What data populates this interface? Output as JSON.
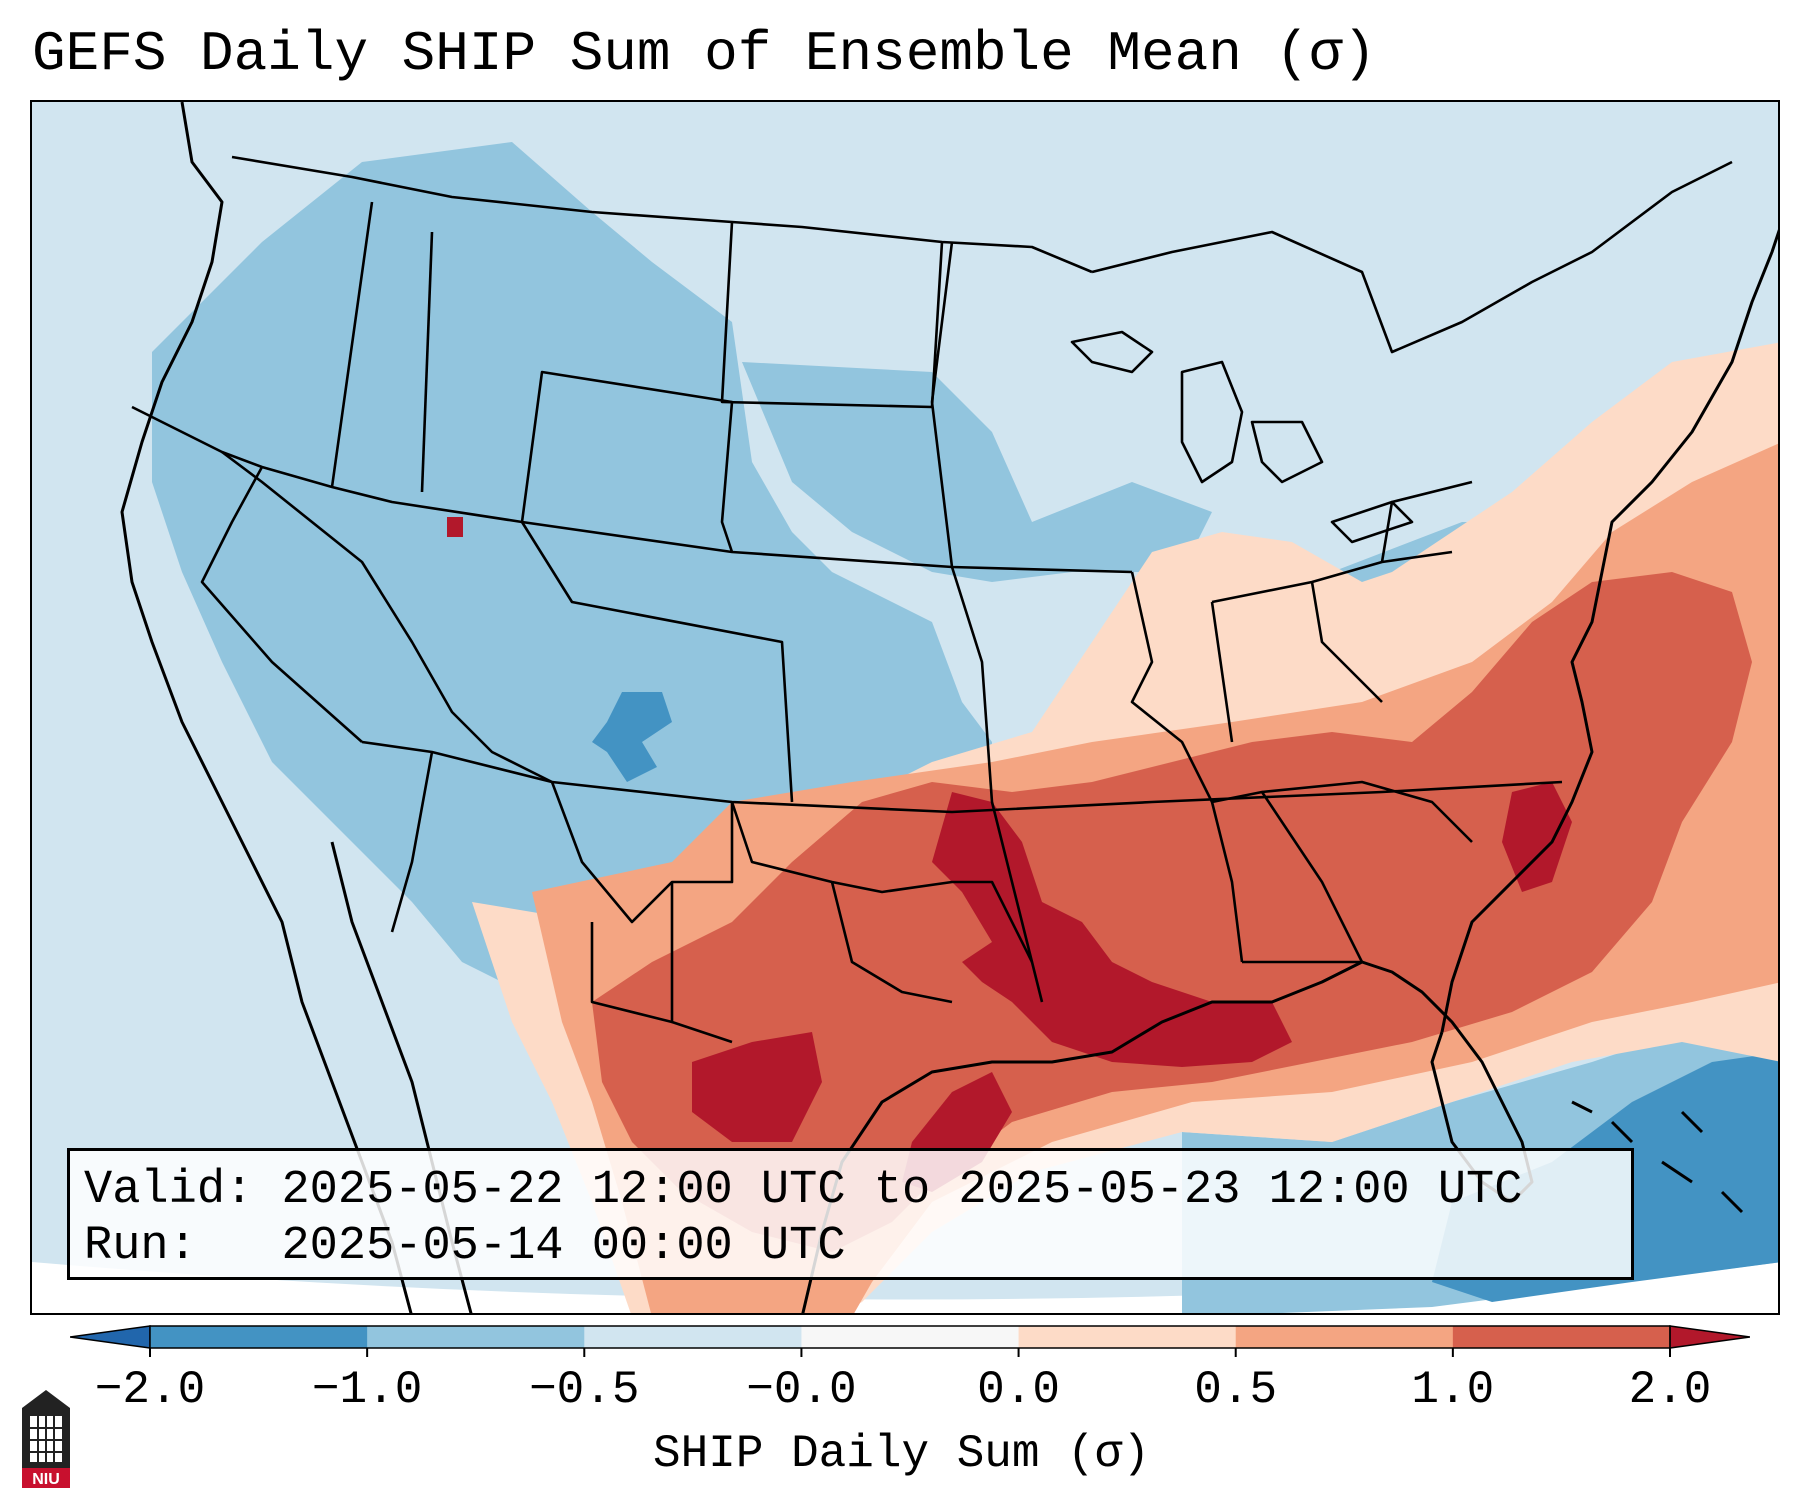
{
  "title": "GEFS Daily SHIP Sum of Ensemble Mean (σ)",
  "info": {
    "valid_label": "Valid:",
    "valid_value": "2025-05-22 12:00 UTC to 2025-05-23 12:00 UTC",
    "run_label": "Run:",
    "run_value": "2025-05-14 00:00 UTC"
  },
  "colorbar": {
    "label": "SHIP Daily Sum (σ)",
    "ticks": [
      "−2.0",
      "−1.0",
      "−0.5",
      "−0.0",
      "0.0",
      "0.5",
      "1.0",
      "2.0"
    ],
    "colors": [
      "#4393c3",
      "#92c5de",
      "#d1e5f0",
      "#f7f7f7",
      "#fddbc7",
      "#f4a582",
      "#d6604d"
    ],
    "under_color": "#2166ac",
    "over_color": "#b2182b",
    "extend": "both"
  },
  "map": {
    "domain": "CONUS",
    "projection": "Lambert Conformal",
    "background_color": "#d1e5f0",
    "border_color": "#000000"
  },
  "logo": {
    "text": "NIU",
    "color": "#c8102e"
  }
}
